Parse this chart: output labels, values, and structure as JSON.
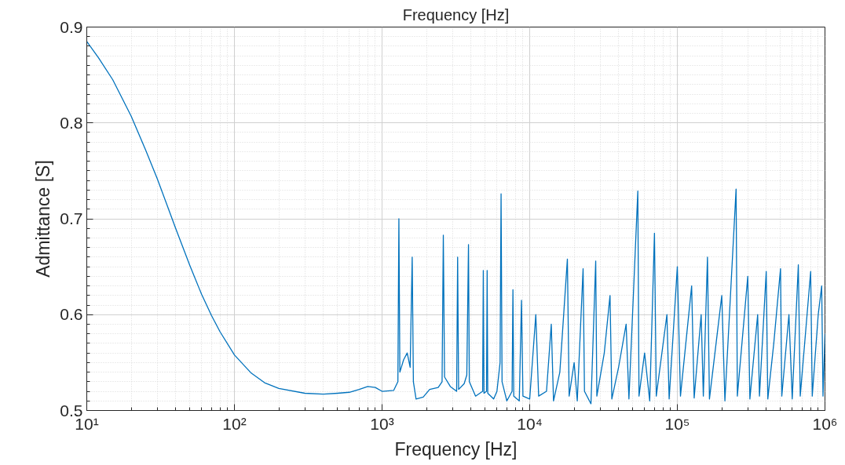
{
  "chart_data": {
    "type": "line",
    "xlabel": "Frequency [Hz]",
    "ylabel": "Admittance [S]",
    "annotations": [
      "Frequency [Hz]"
    ],
    "log": "x",
    "grid": true,
    "line_style": "solid",
    "xlim": [
      10,
      1000000
    ],
    "ylim": [
      0.5,
      0.9
    ],
    "xticks": [
      {
        "value": 10,
        "label": "10¹"
      },
      {
        "value": 100,
        "label": "10²"
      },
      {
        "value": 1000,
        "label": "10³"
      },
      {
        "value": 10000,
        "label": "10⁴"
      },
      {
        "value": 100000,
        "label": "10⁵"
      },
      {
        "value": 1000000,
        "label": "10⁶"
      }
    ],
    "yticks": [
      0.5,
      0.6,
      0.7,
      0.8,
      0.9
    ],
    "series": [
      {
        "color": "#0072bd",
        "x": [
          10,
          12,
          15,
          20,
          25,
          30,
          40,
          50,
          60,
          70,
          80,
          100,
          130,
          160,
          200,
          300,
          400,
          500,
          600,
          700,
          800,
          900,
          1000,
          1200,
          1280,
          1300,
          1320,
          1400,
          1480,
          1550,
          1600,
          1630,
          1700,
          1900,
          2100,
          2400,
          2550,
          2600,
          2650,
          2900,
          3200,
          3250,
          3300,
          3600,
          3750,
          3850,
          3900,
          4300,
          4800,
          4850,
          4900,
          5100,
          5150,
          5200,
          5700,
          6000,
          6300,
          6400,
          6500,
          7000,
          7600,
          7700,
          7800,
          8500,
          8800,
          9000,
          10000,
          11000,
          11500,
          13000,
          14000,
          14500,
          16000,
          18000,
          18500,
          20000,
          21000,
          23000,
          23500,
          26000,
          28000,
          28500,
          32000,
          35000,
          36000,
          40000,
          45000,
          47000,
          54000,
          55000,
          60000,
          65000,
          70000,
          72000,
          85000,
          88000,
          100000,
          105000,
          125000,
          130000,
          145000,
          150000,
          160000,
          165000,
          200000,
          210000,
          250000,
          255000,
          300000,
          310000,
          350000,
          360000,
          400000,
          410000,
          450000,
          500000,
          510000,
          570000,
          600000,
          660000,
          680000,
          800000,
          820000,
          900000,
          950000,
          970000,
          1000000
        ],
        "values": [
          0.885,
          0.868,
          0.845,
          0.807,
          0.772,
          0.742,
          0.69,
          0.651,
          0.621,
          0.599,
          0.582,
          0.558,
          0.539,
          0.529,
          0.523,
          0.518,
          0.517,
          0.518,
          0.519,
          0.522,
          0.525,
          0.524,
          0.52,
          0.521,
          0.53,
          0.7,
          0.54,
          0.553,
          0.56,
          0.545,
          0.66,
          0.53,
          0.512,
          0.514,
          0.522,
          0.524,
          0.53,
          0.683,
          0.535,
          0.525,
          0.52,
          0.66,
          0.522,
          0.528,
          0.537,
          0.673,
          0.53,
          0.515,
          0.52,
          0.646,
          0.518,
          0.52,
          0.646,
          0.518,
          0.512,
          0.52,
          0.55,
          0.726,
          0.53,
          0.51,
          0.52,
          0.626,
          0.515,
          0.51,
          0.615,
          0.515,
          0.512,
          0.6,
          0.515,
          0.52,
          0.59,
          0.51,
          0.54,
          0.658,
          0.515,
          0.55,
          0.51,
          0.648,
          0.52,
          0.507,
          0.656,
          0.515,
          0.56,
          0.62,
          0.512,
          0.545,
          0.59,
          0.512,
          0.729,
          0.515,
          0.56,
          0.51,
          0.685,
          0.515,
          0.6,
          0.512,
          0.65,
          0.515,
          0.63,
          0.513,
          0.6,
          0.515,
          0.66,
          0.512,
          0.62,
          0.51,
          0.731,
          0.515,
          0.64,
          0.512,
          0.6,
          0.515,
          0.645,
          0.512,
          0.57,
          0.648,
          0.515,
          0.6,
          0.512,
          0.652,
          0.515,
          0.645,
          0.515,
          0.6,
          0.63,
          0.515,
          0.58
        ]
      }
    ]
  }
}
